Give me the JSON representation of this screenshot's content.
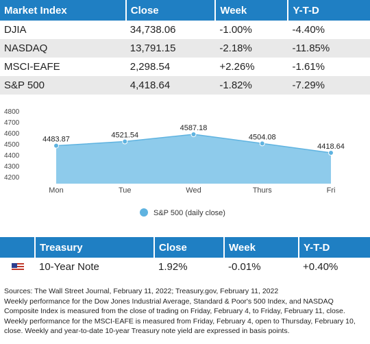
{
  "market_table": {
    "headers": [
      "Market Index",
      "Close",
      "Week",
      "Y-T-D"
    ],
    "rows": [
      [
        "DJIA",
        "34,738.06",
        "-1.00%",
        "-4.40%"
      ],
      [
        "NASDAQ",
        "13,791.15",
        "-2.18%",
        "-11.85%"
      ],
      [
        "MSCI-EAFE",
        "2,298.54",
        "+2.26%",
        "-1.61%"
      ],
      [
        "S&P 500",
        "4,418.64",
        "-1.82%",
        "-7.29%"
      ]
    ]
  },
  "chart_data": {
    "type": "area",
    "categories": [
      "Mon",
      "Tue",
      "Wed",
      "Thurs",
      "Fri"
    ],
    "series": [
      {
        "name": "S&P 500 (daily close)",
        "values": [
          4483.87,
          4521.54,
          4587.18,
          4504.08,
          4418.64
        ],
        "labels": [
          "4483.87",
          "4521.54",
          "4587.18",
          "4504.08",
          "4418.64"
        ]
      }
    ],
    "yticks": [
      "4800",
      "4700",
      "4600",
      "4500",
      "4400",
      "4300",
      "4200"
    ],
    "ylim": [
      4200,
      4800
    ],
    "legend_position": "bottom",
    "colors": {
      "fill": "#8ecbeb",
      "line": "#5fb3e0",
      "marker": "#5fb3e0"
    }
  },
  "treasury_table": {
    "headers": [
      "Treasury",
      "Close",
      "Week",
      "Y-T-D"
    ],
    "row": {
      "icon": "us-flag-icon",
      "name": "10-Year Note",
      "close": "1.92%",
      "week": "-0.01%",
      "ytd": "+0.40%"
    }
  },
  "notes": [
    "Sources: The Wall Street Journal, February 11, 2022; Treasury.gov, February 11, 2022",
    "Weekly performance for the Dow Jones Industrial Average, Standard & Poor's 500 Index, and NASDAQ Composite Index is measured from the close of trading on Friday, February 4, to Friday, February 11, close. Weekly performance for the MSCI-EAFE is measured from Friday, February 4, open to Thursday, February 10, close. Weekly and year-to-date 10-year Treasury note yield are expressed in basis points."
  ],
  "theme": {
    "header_blue": "#1f7fc3",
    "row_alt": "#e9e9e9"
  }
}
